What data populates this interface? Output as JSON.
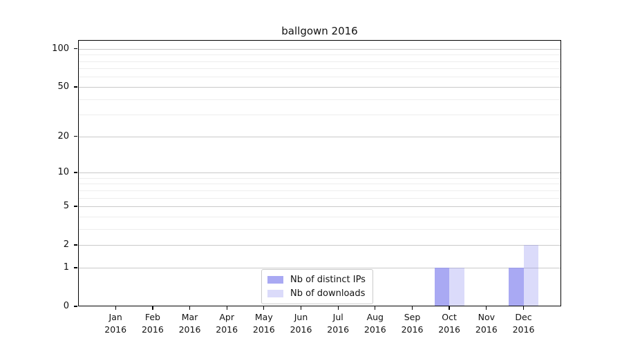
{
  "chart_data": {
    "type": "bar",
    "title": "ballgown 2016",
    "categories": [
      "Jan",
      "Feb",
      "Mar",
      "Apr",
      "May",
      "Jun",
      "Jul",
      "Aug",
      "Sep",
      "Oct",
      "Nov",
      "Dec"
    ],
    "x_tick_year": "2016",
    "series": [
      {
        "name": "Nb of distinct IPs",
        "color": "rgba(136,136,238,0.72)",
        "color_on_white": "#ababf3",
        "values": [
          0,
          0,
          0,
          0,
          0,
          0,
          0,
          0,
          0,
          1,
          0,
          1
        ]
      },
      {
        "name": "Nb of downloads",
        "color": "rgba(136,136,238,0.30)",
        "color_on_white": "#dbdbfa",
        "values": [
          0,
          0,
          0,
          0,
          0,
          0,
          0,
          0,
          0,
          1,
          0,
          2
        ]
      }
    ],
    "y_axis": {
      "scale": "log1p",
      "ticks": [
        0,
        1,
        2,
        5,
        10,
        20,
        50,
        100
      ],
      "minor_gridlines": [
        3,
        4,
        6,
        7,
        8,
        9,
        30,
        40,
        60,
        70,
        80,
        90
      ],
      "range_min": 0,
      "range_max_visible": 100
    },
    "xlabel": "",
    "ylabel": "",
    "grid": true,
    "legend_position": "bottom-center",
    "grid_major_color": "#c9c9c9",
    "grid_minor_color": "#ededed",
    "axis_color": "#000000"
  }
}
